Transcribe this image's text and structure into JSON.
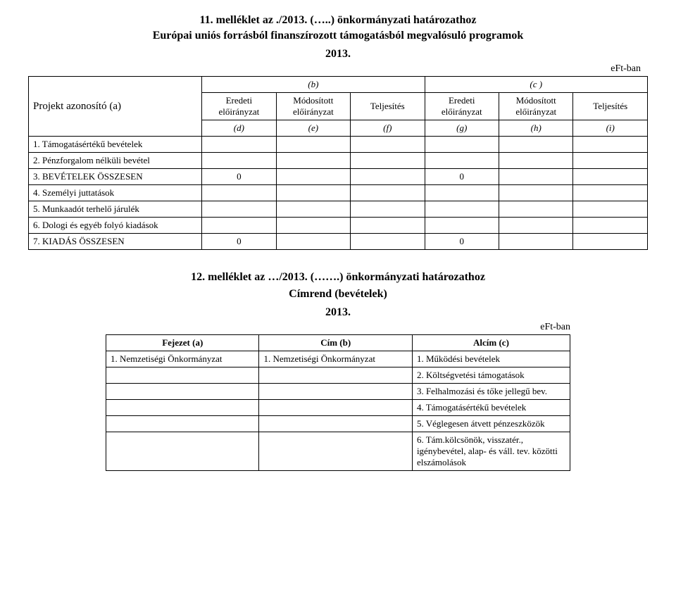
{
  "section1": {
    "title": "11. melléklet az ./2013. (…..) önkormányzati határozathoz",
    "subtitle": "Európai uniós forrásból finanszírozott támogatásból megvalósuló programok",
    "year": "2013.",
    "unit": "eFt-ban",
    "project_label": "Projekt azonosító (a)",
    "group_b": "(b)",
    "group_c": "(c )",
    "col_headers": {
      "eredeti_b": "Eredeti előirányzat",
      "modositott_b": "Módosított előirányzat",
      "teljesites_b": "Teljesítés",
      "eredeti_c": "Eredeti előirányzat",
      "modositott_c": "Módosított előirányzat",
      "teljesites_c": "Teljesítés"
    },
    "letter_row": {
      "d": "(d)",
      "e": "(e)",
      "f": "(f)",
      "g": "(g)",
      "h": "(h)",
      "i": "(i)"
    },
    "rows": [
      {
        "label": "1. Támogatásértékű bevételek",
        "d": "",
        "e": "",
        "f": "",
        "g": "",
        "h": "",
        "i": ""
      },
      {
        "label": "2. Pénzforgalom nélküli bevétel",
        "d": "",
        "e": "",
        "f": "",
        "g": "",
        "h": "",
        "i": ""
      },
      {
        "label": "3. BEVÉTELEK ÖSSZESEN",
        "d": "0",
        "e": "",
        "f": "",
        "g": "0",
        "h": "",
        "i": ""
      },
      {
        "label": "4. Személyi juttatások",
        "d": "",
        "e": "",
        "f": "",
        "g": "",
        "h": "",
        "i": ""
      },
      {
        "label": "5. Munkaadót terhelő járulék",
        "d": "",
        "e": "",
        "f": "",
        "g": "",
        "h": "",
        "i": ""
      },
      {
        "label": "6. Dologi és egyéb folyó kiadások",
        "d": "",
        "e": "",
        "f": "",
        "g": "",
        "h": "",
        "i": ""
      },
      {
        "label": "7. KIADÁS ÖSSZESEN",
        "d": "0",
        "e": "",
        "f": "",
        "g": "0",
        "h": "",
        "i": ""
      }
    ]
  },
  "section2": {
    "title": "12. melléklet az …/2013. (…….) önkormányzati határozathoz",
    "subtitle": "Címrend (bevételek)",
    "year": "2013.",
    "unit": "eFt-ban",
    "headers": {
      "fejezet": "Fejezet (a)",
      "cim": "Cím (b)",
      "alcim": "Alcím (c)"
    },
    "rows": [
      {
        "a": "1. Nemzetiségi Önkormányzat",
        "b": "1. Nemzetiségi Önkormányzat",
        "c": "1. Működési bevételek"
      },
      {
        "a": "",
        "b": "",
        "c": "2. Költségvetési támogatások"
      },
      {
        "a": "",
        "b": "",
        "c": "3. Felhalmozási és tőke jellegű bev."
      },
      {
        "a": "",
        "b": "",
        "c": "4. Támogatásértékű bevételek"
      },
      {
        "a": "",
        "b": "",
        "c": "5. Véglegesen átvett pénzeszközök"
      },
      {
        "a": "",
        "b": "",
        "c": "6. Tám.kölcsönök, visszatér., igénybevétel, alap- és váll. tev. közötti elszámolások"
      }
    ]
  },
  "style": {
    "background": "#ffffff",
    "text_color": "#000000",
    "border_color": "#000000",
    "font_family": "Times New Roman",
    "title_fontsize": 16,
    "body_fontsize": 13
  }
}
